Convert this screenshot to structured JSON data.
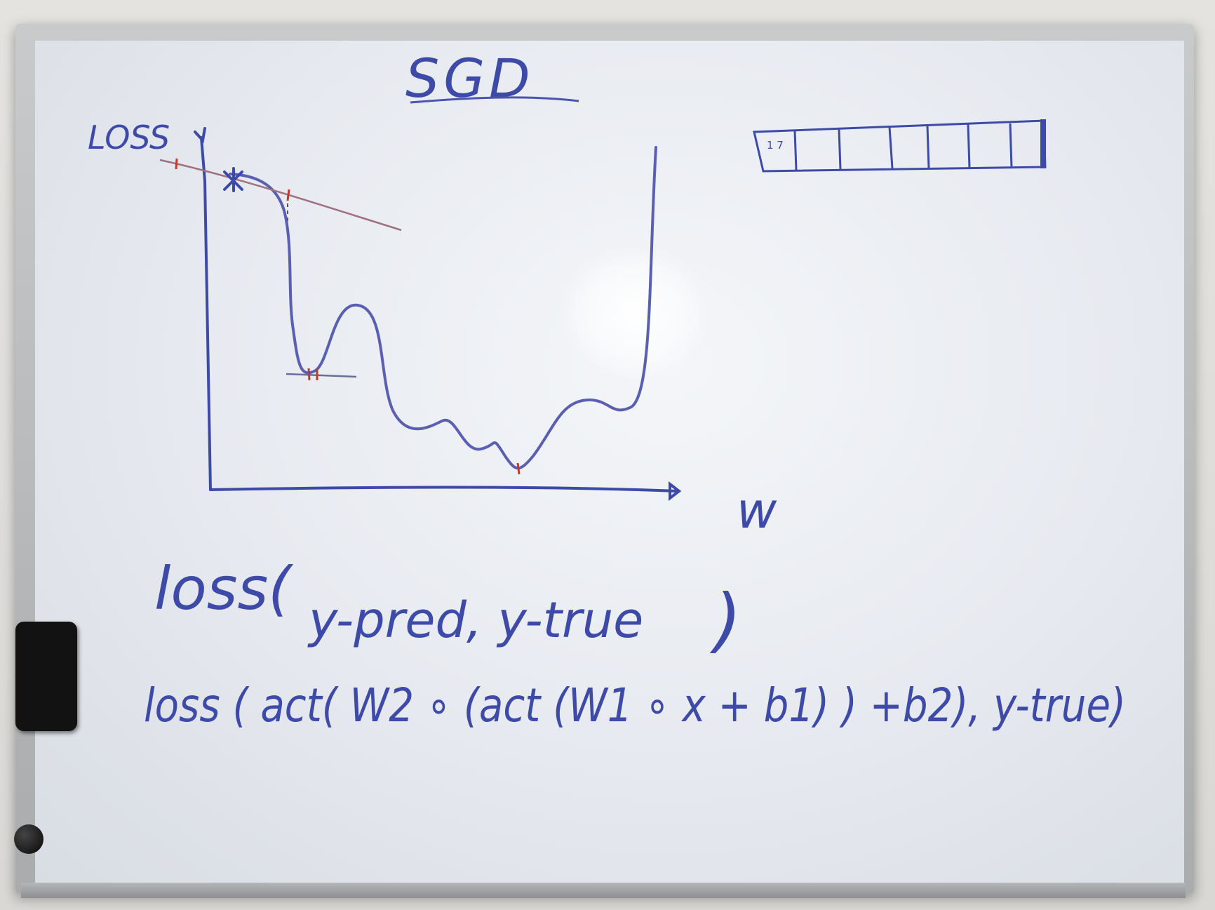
{
  "whiteboard": {
    "title": "SGD",
    "y_axis_label": "LOSS",
    "x_axis_label": "w",
    "formula_line_1": {
      "fn": "loss(",
      "args": "y-pred, y-true",
      "close": ")"
    },
    "formula_line_2": {
      "text": "loss ( act( W2 ∘ (act (W1 ∘ x + b1) ) +b2), y-true)"
    },
    "batch_box": {
      "cells": 7,
      "first_cell_marks": "1 7"
    }
  },
  "colors": {
    "marker_blue": "#3e4aa8",
    "marker_red": "#c0392b",
    "board_white": "#eef1f5",
    "frame_gray": "#b8babc",
    "eraser_black": "#121212"
  }
}
